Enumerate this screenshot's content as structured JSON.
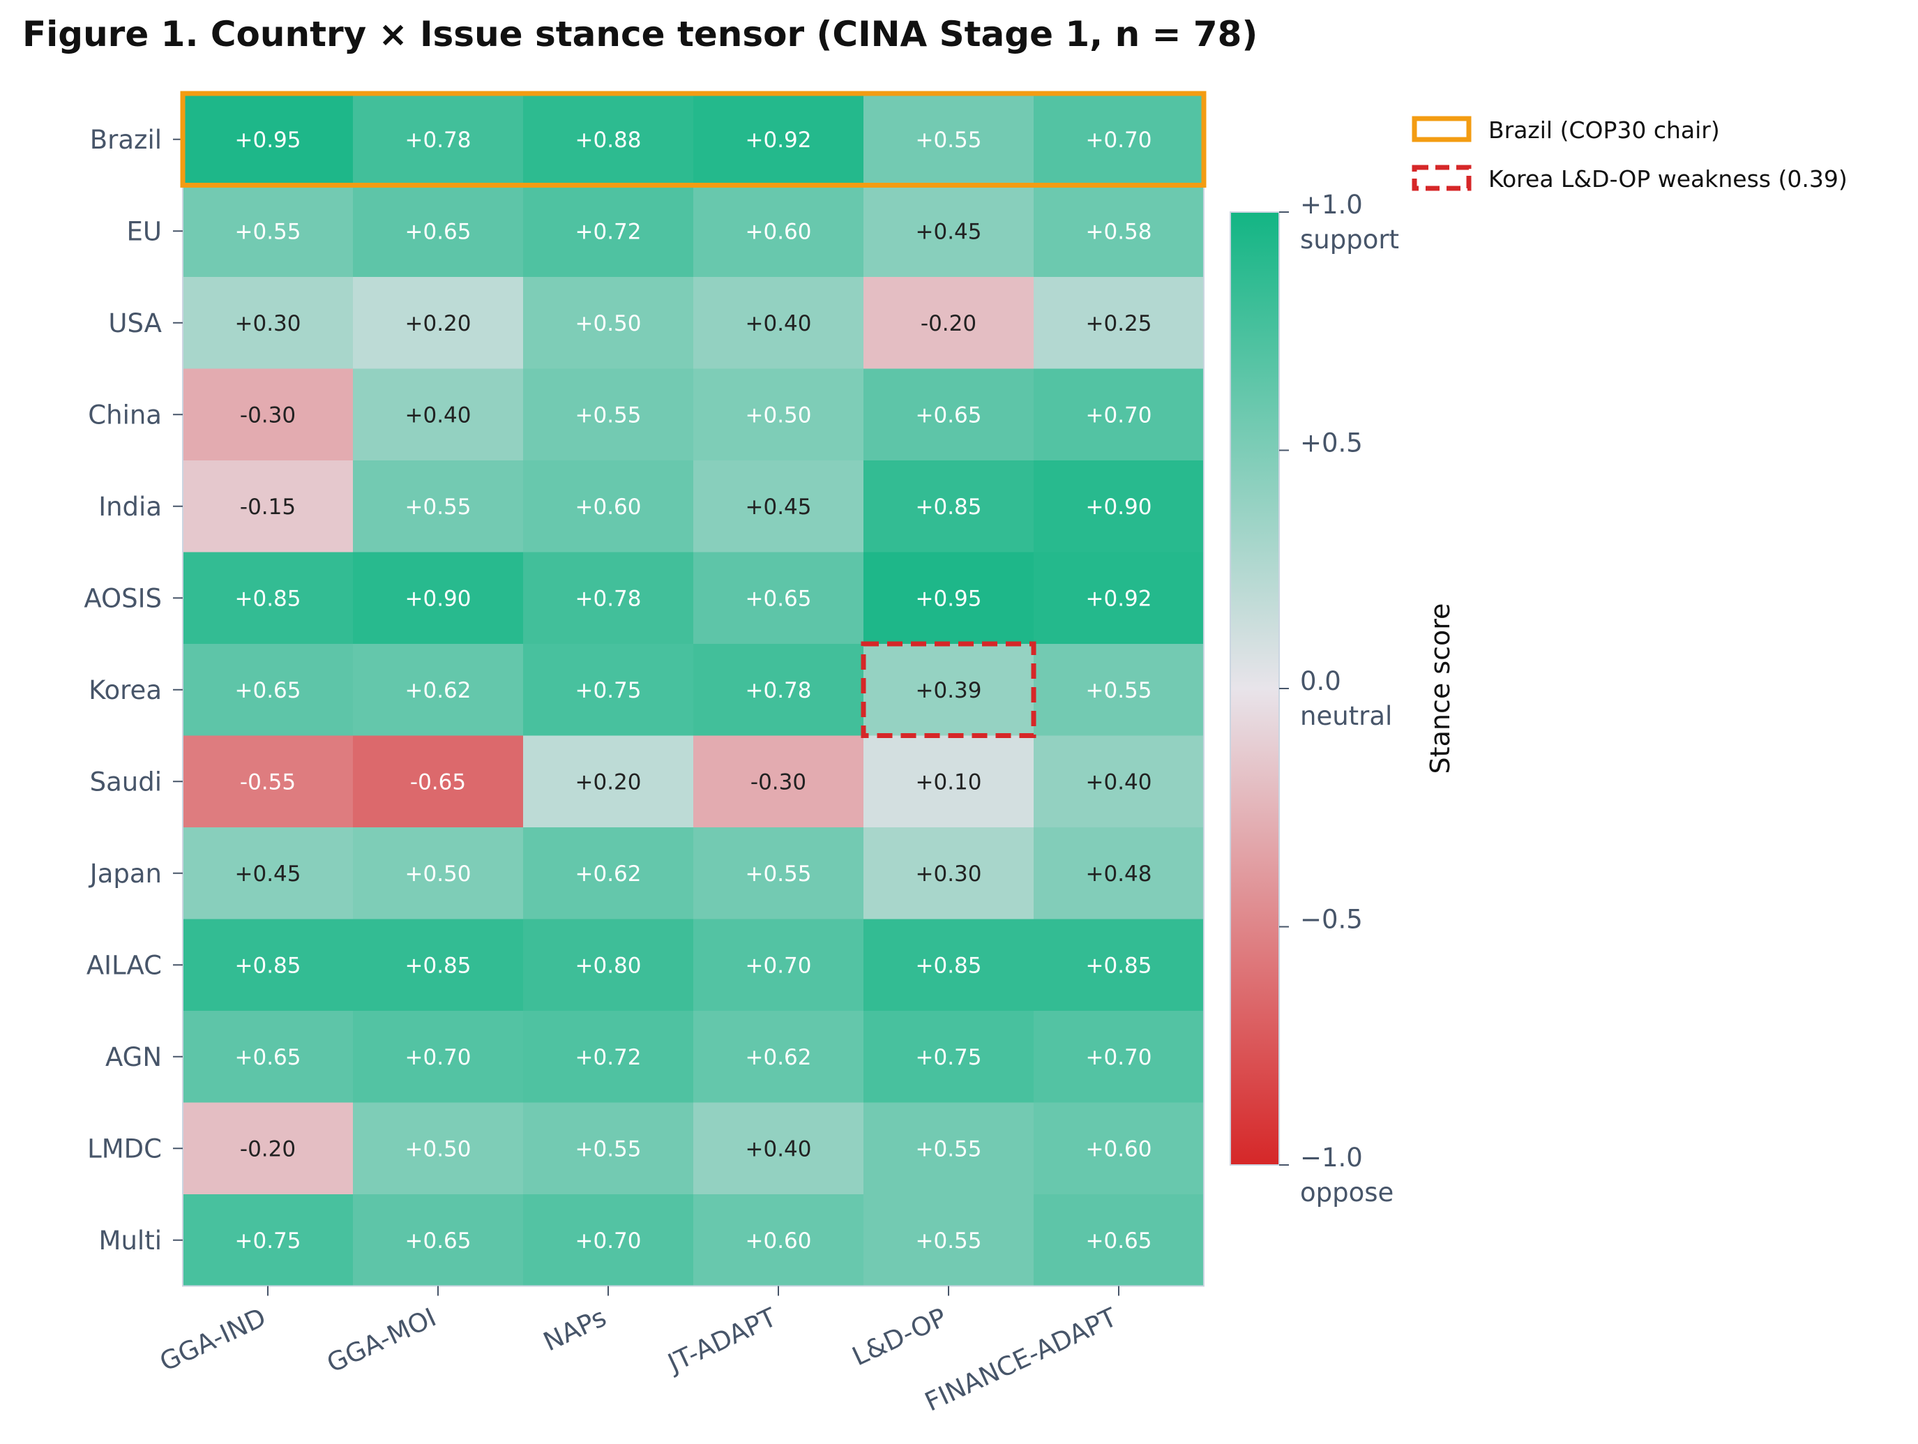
{
  "title": "Figure 1. Country × Issue stance tensor (CINA Stage 1, n = 78)",
  "chart_data": {
    "type": "heatmap",
    "title": "Figure 1. Country × Issue stance tensor (CINA Stage 1, n = 78)",
    "columns": [
      "GGA-IND",
      "GGA-MOI",
      "NAPs",
      "JT-ADAPT",
      "L&D-OP",
      "FINANCE-ADAPT"
    ],
    "rows": [
      "Brazil",
      "EU",
      "USA",
      "China",
      "India",
      "AOSIS",
      "Korea",
      "Saudi",
      "Japan",
      "AILAC",
      "AGN",
      "LMDC",
      "Multi"
    ],
    "values": [
      [
        0.95,
        0.78,
        0.88,
        0.92,
        0.55,
        0.7
      ],
      [
        0.55,
        0.65,
        0.72,
        0.6,
        0.45,
        0.58
      ],
      [
        0.3,
        0.2,
        0.5,
        0.4,
        -0.2,
        0.25
      ],
      [
        -0.3,
        0.4,
        0.55,
        0.5,
        0.65,
        0.7
      ],
      [
        -0.15,
        0.55,
        0.6,
        0.45,
        0.85,
        0.9
      ],
      [
        0.85,
        0.9,
        0.78,
        0.65,
        0.95,
        0.92
      ],
      [
        0.65,
        0.62,
        0.75,
        0.78,
        0.39,
        0.55
      ],
      [
        -0.55,
        -0.65,
        0.2,
        -0.3,
        0.1,
        0.4
      ],
      [
        0.45,
        0.5,
        0.62,
        0.55,
        0.3,
        0.48
      ],
      [
        0.85,
        0.85,
        0.8,
        0.7,
        0.85,
        0.85
      ],
      [
        0.65,
        0.7,
        0.72,
        0.62,
        0.75,
        0.7
      ],
      [
        -0.2,
        0.5,
        0.55,
        0.4,
        0.55,
        0.6
      ],
      [
        0.75,
        0.65,
        0.7,
        0.6,
        0.55,
        0.65
      ]
    ],
    "labels": [
      [
        "+0.95",
        "+0.78",
        "+0.88",
        "+0.92",
        "+0.55",
        "+0.70"
      ],
      [
        "+0.55",
        "+0.65",
        "+0.72",
        "+0.60",
        "+0.45",
        "+0.58"
      ],
      [
        "+0.30",
        "+0.20",
        "+0.50",
        "+0.40",
        "-0.20",
        "+0.25"
      ],
      [
        "-0.30",
        "+0.40",
        "+0.55",
        "+0.50",
        "+0.65",
        "+0.70"
      ],
      [
        "-0.15",
        "+0.55",
        "+0.60",
        "+0.45",
        "+0.85",
        "+0.90"
      ],
      [
        "+0.85",
        "+0.90",
        "+0.78",
        "+0.65",
        "+0.95",
        "+0.92"
      ],
      [
        "+0.65",
        "+0.62",
        "+0.75",
        "+0.78",
        "+0.39",
        "+0.55"
      ],
      [
        "-0.55",
        "-0.65",
        "+0.20",
        "-0.30",
        "+0.10",
        "+0.40"
      ],
      [
        "+0.45",
        "+0.50",
        "+0.62",
        "+0.55",
        "+0.30",
        "+0.48"
      ],
      [
        "+0.85",
        "+0.85",
        "+0.80",
        "+0.70",
        "+0.85",
        "+0.85"
      ],
      [
        "+0.65",
        "+0.70",
        "+0.72",
        "+0.62",
        "+0.75",
        "+0.70"
      ],
      [
        "-0.20",
        "+0.50",
        "+0.55",
        "+0.40",
        "+0.55",
        "+0.60"
      ],
      [
        "+0.75",
        "+0.65",
        "+0.70",
        "+0.60",
        "+0.55",
        "+0.65"
      ]
    ],
    "value_range": [
      -1.0,
      1.0
    ],
    "colormap": {
      "negative": "#d62728",
      "neutral": "#e8e4ea",
      "positive": "#13b584"
    },
    "colorbar": {
      "label": "Stance score",
      "ticks": [
        {
          "value": 1.0,
          "label": "+1.0",
          "sublabel": "support"
        },
        {
          "value": 0.5,
          "label": "+0.5",
          "sublabel": ""
        },
        {
          "value": 0.0,
          "label": "0.0",
          "sublabel": "neutral"
        },
        {
          "value": -0.5,
          "label": "−0.5",
          "sublabel": ""
        },
        {
          "value": -1.0,
          "label": "−1.0",
          "sublabel": "oppose"
        }
      ]
    },
    "highlights": [
      {
        "kind": "row",
        "row": 0,
        "style": "solid",
        "color": "#f39c12"
      },
      {
        "kind": "cell",
        "row": 6,
        "col": 4,
        "style": "dashed",
        "color": "#d62728"
      }
    ],
    "legend": {
      "placement": "top-right, outside plot",
      "entries": [
        {
          "label": "Brazil (COP30 chair)",
          "style": "solid",
          "color": "#f39c12"
        },
        {
          "label": "Korea L&D-OP weakness (0.39)",
          "style": "dashed",
          "color": "#d62728"
        }
      ]
    },
    "grid": false
  }
}
